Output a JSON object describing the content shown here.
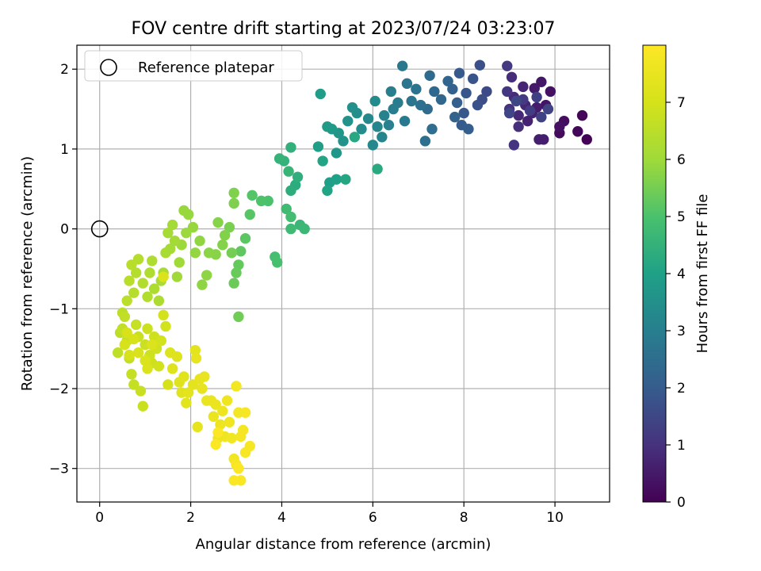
{
  "chart_data": {
    "type": "scatter",
    "title": "FOV centre drift starting at 2023/07/24 03:23:07",
    "xlabel": "Angular distance from reference (arcmin)",
    "ylabel": "Rotation from reference (arcmin)",
    "xlim": [
      -0.5,
      11.2
    ],
    "ylim": [
      -3.42,
      2.3
    ],
    "xticks": [
      0,
      2,
      4,
      6,
      8,
      10
    ],
    "yticks": [
      -3,
      -2,
      -1,
      0,
      1,
      2
    ],
    "xtick_labels": [
      "0",
      "2",
      "4",
      "6",
      "8",
      "10"
    ],
    "ytick_labels": [
      "−3",
      "−2",
      "−1",
      "0",
      "1",
      "2"
    ],
    "grid": true,
    "legend": {
      "position": "top-left",
      "label": "Reference platepar"
    },
    "reference_point": {
      "x": 0,
      "y": 0
    },
    "colorbar": {
      "label": "Hours from first FF file",
      "range": [
        0,
        8
      ],
      "ticks": [
        0,
        1,
        2,
        3,
        4,
        5,
        6,
        7
      ],
      "tick_labels": [
        "0",
        "1",
        "2",
        "3",
        "4",
        "5",
        "6",
        "7"
      ],
      "colormap": "viridis"
    },
    "points": [
      {
        "x": 10.7,
        "y": 1.12,
        "h": 0.05
      },
      {
        "x": 10.6,
        "y": 1.42,
        "h": 0.1
      },
      {
        "x": 10.5,
        "y": 1.22,
        "h": 0.15
      },
      {
        "x": 10.1,
        "y": 1.2,
        "h": 0.2
      },
      {
        "x": 10.2,
        "y": 1.35,
        "h": 0.25
      },
      {
        "x": 10.1,
        "y": 1.28,
        "h": 0.3
      },
      {
        "x": 9.9,
        "y": 1.72,
        "h": 0.35
      },
      {
        "x": 9.8,
        "y": 1.55,
        "h": 0.4
      },
      {
        "x": 9.7,
        "y": 1.84,
        "h": 0.45
      },
      {
        "x": 9.55,
        "y": 1.76,
        "h": 0.5
      },
      {
        "x": 9.6,
        "y": 1.52,
        "h": 0.55
      },
      {
        "x": 9.75,
        "y": 1.12,
        "h": 0.6
      },
      {
        "x": 9.65,
        "y": 1.12,
        "h": 0.62
      },
      {
        "x": 9.5,
        "y": 1.45,
        "h": 0.65
      },
      {
        "x": 9.4,
        "y": 1.35,
        "h": 0.7
      },
      {
        "x": 9.3,
        "y": 1.78,
        "h": 0.75
      },
      {
        "x": 9.35,
        "y": 1.55,
        "h": 0.78
      },
      {
        "x": 9.2,
        "y": 1.42,
        "h": 0.8
      },
      {
        "x": 9.1,
        "y": 1.65,
        "h": 0.85
      },
      {
        "x": 9.05,
        "y": 1.9,
        "h": 0.9
      },
      {
        "x": 9.2,
        "y": 1.28,
        "h": 0.95
      },
      {
        "x": 9.0,
        "y": 1.5,
        "h": 1.0
      },
      {
        "x": 9.1,
        "y": 1.05,
        "h": 1.05
      },
      {
        "x": 8.95,
        "y": 1.72,
        "h": 1.1
      },
      {
        "x": 8.95,
        "y": 2.04,
        "h": 1.15
      },
      {
        "x": 9.3,
        "y": 1.62,
        "h": 1.2
      },
      {
        "x": 9.45,
        "y": 1.48,
        "h": 1.25
      },
      {
        "x": 9.6,
        "y": 1.65,
        "h": 1.3
      },
      {
        "x": 9.7,
        "y": 1.4,
        "h": 1.35
      },
      {
        "x": 9.85,
        "y": 1.5,
        "h": 1.4
      },
      {
        "x": 9.0,
        "y": 1.45,
        "h": 1.45
      },
      {
        "x": 9.15,
        "y": 1.6,
        "h": 1.5
      },
      {
        "x": 8.5,
        "y": 1.72,
        "h": 1.6
      },
      {
        "x": 8.4,
        "y": 1.62,
        "h": 1.65
      },
      {
        "x": 8.35,
        "y": 2.05,
        "h": 1.7
      },
      {
        "x": 8.3,
        "y": 1.55,
        "h": 1.75
      },
      {
        "x": 8.2,
        "y": 1.88,
        "h": 1.8
      },
      {
        "x": 8.05,
        "y": 1.7,
        "h": 1.85
      },
      {
        "x": 8.0,
        "y": 1.45,
        "h": 1.9
      },
      {
        "x": 7.9,
        "y": 1.95,
        "h": 1.95
      },
      {
        "x": 7.95,
        "y": 1.3,
        "h": 2.0
      },
      {
        "x": 8.1,
        "y": 1.25,
        "h": 2.05
      },
      {
        "x": 7.85,
        "y": 1.58,
        "h": 2.1
      },
      {
        "x": 7.75,
        "y": 1.75,
        "h": 2.15
      },
      {
        "x": 7.8,
        "y": 1.4,
        "h": 2.2
      },
      {
        "x": 7.65,
        "y": 1.85,
        "h": 2.25
      },
      {
        "x": 7.5,
        "y": 1.62,
        "h": 2.3
      },
      {
        "x": 7.35,
        "y": 1.72,
        "h": 2.35
      },
      {
        "x": 7.25,
        "y": 1.92,
        "h": 2.4
      },
      {
        "x": 7.2,
        "y": 1.5,
        "h": 2.45
      },
      {
        "x": 7.3,
        "y": 1.25,
        "h": 2.5
      },
      {
        "x": 7.15,
        "y": 1.1,
        "h": 2.55
      },
      {
        "x": 7.05,
        "y": 1.55,
        "h": 2.6
      },
      {
        "x": 6.95,
        "y": 1.75,
        "h": 2.65
      },
      {
        "x": 6.85,
        "y": 1.6,
        "h": 2.7
      },
      {
        "x": 6.75,
        "y": 1.82,
        "h": 2.75
      },
      {
        "x": 6.65,
        "y": 2.04,
        "h": 2.8
      },
      {
        "x": 6.7,
        "y": 1.35,
        "h": 2.85
      },
      {
        "x": 6.55,
        "y": 1.58,
        "h": 2.9
      },
      {
        "x": 6.45,
        "y": 1.5,
        "h": 2.95
      },
      {
        "x": 6.4,
        "y": 1.72,
        "h": 3.0
      },
      {
        "x": 6.35,
        "y": 1.3,
        "h": 3.05
      },
      {
        "x": 6.25,
        "y": 1.42,
        "h": 3.1
      },
      {
        "x": 6.2,
        "y": 1.15,
        "h": 3.15
      },
      {
        "x": 6.1,
        "y": 1.28,
        "h": 3.2
      },
      {
        "x": 6.0,
        "y": 1.05,
        "h": 3.25
      },
      {
        "x": 5.9,
        "y": 1.38,
        "h": 3.3
      },
      {
        "x": 6.05,
        "y": 1.6,
        "h": 3.35
      },
      {
        "x": 5.75,
        "y": 1.25,
        "h": 3.4
      },
      {
        "x": 5.65,
        "y": 1.45,
        "h": 3.45
      },
      {
        "x": 5.55,
        "y": 1.52,
        "h": 3.5
      },
      {
        "x": 5.45,
        "y": 1.35,
        "h": 3.55
      },
      {
        "x": 5.35,
        "y": 1.1,
        "h": 3.6
      },
      {
        "x": 5.25,
        "y": 1.2,
        "h": 3.65
      },
      {
        "x": 5.2,
        "y": 0.95,
        "h": 3.7
      },
      {
        "x": 5.1,
        "y": 1.25,
        "h": 3.75
      },
      {
        "x": 5.0,
        "y": 1.28,
        "h": 3.8
      },
      {
        "x": 4.85,
        "y": 1.69,
        "h": 3.85
      },
      {
        "x": 4.8,
        "y": 1.03,
        "h": 3.9
      },
      {
        "x": 5.05,
        "y": 0.58,
        "h": 3.95
      },
      {
        "x": 5.2,
        "y": 0.62,
        "h": 4.0
      },
      {
        "x": 5.0,
        "y": 0.48,
        "h": 4.05
      },
      {
        "x": 4.9,
        "y": 0.85,
        "h": 4.1
      },
      {
        "x": 5.4,
        "y": 0.62,
        "h": 4.15
      },
      {
        "x": 5.6,
        "y": 1.15,
        "h": 4.2
      },
      {
        "x": 6.1,
        "y": 0.75,
        "h": 4.25
      },
      {
        "x": 4.3,
        "y": 0.55,
        "h": 4.3
      },
      {
        "x": 4.2,
        "y": 0.48,
        "h": 4.35
      },
      {
        "x": 4.35,
        "y": 0.65,
        "h": 4.4
      },
      {
        "x": 4.2,
        "y": 1.02,
        "h": 4.45
      },
      {
        "x": 4.05,
        "y": 0.85,
        "h": 4.5
      },
      {
        "x": 3.95,
        "y": 0.88,
        "h": 4.55
      },
      {
        "x": 4.15,
        "y": 0.72,
        "h": 4.6
      },
      {
        "x": 4.4,
        "y": 0.05,
        "h": 4.65
      },
      {
        "x": 4.5,
        "y": 0.0,
        "h": 4.7
      },
      {
        "x": 4.2,
        "y": 0.0,
        "h": 4.75
      },
      {
        "x": 4.1,
        "y": 0.25,
        "h": 4.8
      },
      {
        "x": 4.2,
        "y": 0.15,
        "h": 4.85
      },
      {
        "x": 3.85,
        "y": -0.35,
        "h": 4.9
      },
      {
        "x": 3.9,
        "y": -0.42,
        "h": 4.95
      },
      {
        "x": 3.7,
        "y": 0.35,
        "h": 5.0
      },
      {
        "x": 3.55,
        "y": 0.35,
        "h": 5.05
      },
      {
        "x": 3.35,
        "y": 0.42,
        "h": 5.1
      },
      {
        "x": 3.3,
        "y": 0.18,
        "h": 5.15
      },
      {
        "x": 3.2,
        "y": -0.12,
        "h": 5.2
      },
      {
        "x": 3.1,
        "y": -0.28,
        "h": 5.25
      },
      {
        "x": 3.05,
        "y": -0.45,
        "h": 5.3
      },
      {
        "x": 3.0,
        "y": -0.55,
        "h": 5.35
      },
      {
        "x": 2.95,
        "y": -0.68,
        "h": 5.4
      },
      {
        "x": 3.05,
        "y": -1.1,
        "h": 5.45
      },
      {
        "x": 2.9,
        "y": -0.3,
        "h": 5.5
      },
      {
        "x": 2.85,
        "y": 0.02,
        "h": 5.55
      },
      {
        "x": 2.95,
        "y": 0.32,
        "h": 5.6
      },
      {
        "x": 2.95,
        "y": 0.45,
        "h": 5.62
      },
      {
        "x": 2.75,
        "y": -0.08,
        "h": 5.65
      },
      {
        "x": 2.7,
        "y": -0.2,
        "h": 5.68
      },
      {
        "x": 2.6,
        "y": 0.08,
        "h": 5.7
      },
      {
        "x": 2.55,
        "y": -0.32,
        "h": 5.72
      },
      {
        "x": 2.4,
        "y": -0.3,
        "h": 5.75
      },
      {
        "x": 2.35,
        "y": -0.58,
        "h": 5.78
      },
      {
        "x": 2.25,
        "y": -0.7,
        "h": 5.8
      },
      {
        "x": 2.2,
        "y": -0.15,
        "h": 5.82
      },
      {
        "x": 2.1,
        "y": -0.3,
        "h": 5.85
      },
      {
        "x": 2.05,
        "y": 0.02,
        "h": 5.88
      },
      {
        "x": 1.95,
        "y": 0.18,
        "h": 5.9
      },
      {
        "x": 1.85,
        "y": 0.23,
        "h": 5.92
      },
      {
        "x": 1.9,
        "y": -0.05,
        "h": 5.95
      },
      {
        "x": 1.8,
        "y": -0.2,
        "h": 5.97
      },
      {
        "x": 1.75,
        "y": -0.42,
        "h": 6.0
      },
      {
        "x": 1.7,
        "y": -0.6,
        "h": 6.02
      },
      {
        "x": 1.65,
        "y": -0.15,
        "h": 6.05
      },
      {
        "x": 1.6,
        "y": 0.05,
        "h": 6.07
      },
      {
        "x": 1.55,
        "y": -0.25,
        "h": 6.1
      },
      {
        "x": 1.5,
        "y": -0.05,
        "h": 6.12
      },
      {
        "x": 1.45,
        "y": -0.3,
        "h": 6.15
      },
      {
        "x": 1.4,
        "y": -0.55,
        "h": 6.17
      },
      {
        "x": 1.35,
        "y": -0.65,
        "h": 6.2
      },
      {
        "x": 1.3,
        "y": -0.9,
        "h": 6.22
      },
      {
        "x": 1.2,
        "y": -0.75,
        "h": 6.25
      },
      {
        "x": 1.15,
        "y": -0.4,
        "h": 6.27
      },
      {
        "x": 1.1,
        "y": -0.55,
        "h": 6.3
      },
      {
        "x": 1.05,
        "y": -0.85,
        "h": 6.32
      },
      {
        "x": 0.95,
        "y": -0.68,
        "h": 6.35
      },
      {
        "x": 0.85,
        "y": -0.38,
        "h": 6.37
      },
      {
        "x": 0.8,
        "y": -0.55,
        "h": 6.4
      },
      {
        "x": 0.75,
        "y": -0.8,
        "h": 6.42
      },
      {
        "x": 0.7,
        "y": -0.45,
        "h": 6.45
      },
      {
        "x": 0.65,
        "y": -0.65,
        "h": 6.47
      },
      {
        "x": 0.6,
        "y": -0.9,
        "h": 6.5
      },
      {
        "x": 0.5,
        "y": -1.05,
        "h": 6.52
      },
      {
        "x": 0.45,
        "y": -1.3,
        "h": 6.55
      },
      {
        "x": 0.4,
        "y": -1.55,
        "h": 6.57
      },
      {
        "x": 0.5,
        "y": -1.25,
        "h": 6.6
      },
      {
        "x": 0.55,
        "y": -1.1,
        "h": 6.62
      },
      {
        "x": 0.6,
        "y": -1.4,
        "h": 6.64
      },
      {
        "x": 0.65,
        "y": -1.62,
        "h": 6.66
      },
      {
        "x": 0.7,
        "y": -1.82,
        "h": 6.68
      },
      {
        "x": 0.75,
        "y": -1.95,
        "h": 6.7
      },
      {
        "x": 0.8,
        "y": -1.2,
        "h": 6.72
      },
      {
        "x": 0.85,
        "y": -1.35,
        "h": 6.74
      },
      {
        "x": 0.9,
        "y": -2.03,
        "h": 6.76
      },
      {
        "x": 0.95,
        "y": -2.22,
        "h": 6.78
      },
      {
        "x": 1.0,
        "y": -1.45,
        "h": 6.8
      },
      {
        "x": 1.05,
        "y": -1.25,
        "h": 6.82
      },
      {
        "x": 1.1,
        "y": -1.58,
        "h": 6.84
      },
      {
        "x": 1.15,
        "y": -1.68,
        "h": 6.86
      },
      {
        "x": 1.2,
        "y": -1.35,
        "h": 6.88
      },
      {
        "x": 1.25,
        "y": -1.5,
        "h": 6.9
      },
      {
        "x": 1.3,
        "y": -1.72,
        "h": 6.92
      },
      {
        "x": 1.35,
        "y": -1.4,
        "h": 6.94
      },
      {
        "x": 1.4,
        "y": -1.08,
        "h": 6.96
      },
      {
        "x": 1.45,
        "y": -1.22,
        "h": 6.98
      },
      {
        "x": 1.5,
        "y": -1.95,
        "h": 7.0
      },
      {
        "x": 0.55,
        "y": -1.45,
        "h": 7.02
      },
      {
        "x": 0.6,
        "y": -1.3,
        "h": 7.04
      },
      {
        "x": 0.65,
        "y": -1.58,
        "h": 7.06
      },
      {
        "x": 0.75,
        "y": -1.38,
        "h": 7.08
      },
      {
        "x": 0.85,
        "y": -1.55,
        "h": 7.1
      },
      {
        "x": 1.0,
        "y": -1.65,
        "h": 7.12
      },
      {
        "x": 1.05,
        "y": -1.75,
        "h": 7.14
      },
      {
        "x": 1.15,
        "y": -1.45,
        "h": 7.16
      },
      {
        "x": 1.4,
        "y": -0.6,
        "h": 7.18
      },
      {
        "x": 1.55,
        "y": -1.55,
        "h": 7.2
      },
      {
        "x": 1.6,
        "y": -1.75,
        "h": 7.22
      },
      {
        "x": 1.7,
        "y": -1.6,
        "h": 7.24
      },
      {
        "x": 1.75,
        "y": -1.92,
        "h": 7.26
      },
      {
        "x": 1.8,
        "y": -2.05,
        "h": 7.28
      },
      {
        "x": 1.85,
        "y": -1.85,
        "h": 7.3
      },
      {
        "x": 1.9,
        "y": -2.18,
        "h": 7.32
      },
      {
        "x": 1.95,
        "y": -2.05,
        "h": 7.34
      },
      {
        "x": 2.05,
        "y": -1.95,
        "h": 7.36
      },
      {
        "x": 2.1,
        "y": -1.52,
        "h": 7.38
      },
      {
        "x": 2.12,
        "y": -1.62,
        "h": 7.4
      },
      {
        "x": 2.15,
        "y": -2.48,
        "h": 7.42
      },
      {
        "x": 2.2,
        "y": -1.88,
        "h": 7.44
      },
      {
        "x": 2.25,
        "y": -2.0,
        "h": 7.46
      },
      {
        "x": 2.3,
        "y": -1.85,
        "h": 7.48
      },
      {
        "x": 2.35,
        "y": -2.15,
        "h": 7.5
      },
      {
        "x": 2.45,
        "y": -2.15,
        "h": 7.52
      },
      {
        "x": 2.5,
        "y": -2.35,
        "h": 7.54
      },
      {
        "x": 2.55,
        "y": -2.2,
        "h": 7.56
      },
      {
        "x": 2.6,
        "y": -2.62,
        "h": 7.58
      },
      {
        "x": 2.65,
        "y": -2.45,
        "h": 7.6
      },
      {
        "x": 2.7,
        "y": -2.28,
        "h": 7.62
      },
      {
        "x": 2.75,
        "y": -2.6,
        "h": 7.64
      },
      {
        "x": 2.8,
        "y": -2.15,
        "h": 7.66
      },
      {
        "x": 2.85,
        "y": -2.42,
        "h": 7.68
      },
      {
        "x": 2.9,
        "y": -2.62,
        "h": 7.7
      },
      {
        "x": 2.95,
        "y": -2.88,
        "h": 7.72
      },
      {
        "x": 3.0,
        "y": -1.97,
        "h": 7.74
      },
      {
        "x": 3.05,
        "y": -2.3,
        "h": 7.76
      },
      {
        "x": 3.1,
        "y": -2.6,
        "h": 7.78
      },
      {
        "x": 3.15,
        "y": -2.52,
        "h": 7.8
      },
      {
        "x": 3.2,
        "y": -2.3,
        "h": 7.82
      },
      {
        "x": 3.3,
        "y": -2.72,
        "h": 7.84
      },
      {
        "x": 3.2,
        "y": -2.8,
        "h": 7.86
      },
      {
        "x": 3.0,
        "y": -2.95,
        "h": 7.88
      },
      {
        "x": 2.95,
        "y": -3.15,
        "h": 7.9
      },
      {
        "x": 3.1,
        "y": -3.15,
        "h": 7.92
      },
      {
        "x": 3.05,
        "y": -3.0,
        "h": 7.94
      },
      {
        "x": 2.6,
        "y": -2.55,
        "h": 7.96
      },
      {
        "x": 2.55,
        "y": -2.7,
        "h": 7.98
      }
    ]
  }
}
